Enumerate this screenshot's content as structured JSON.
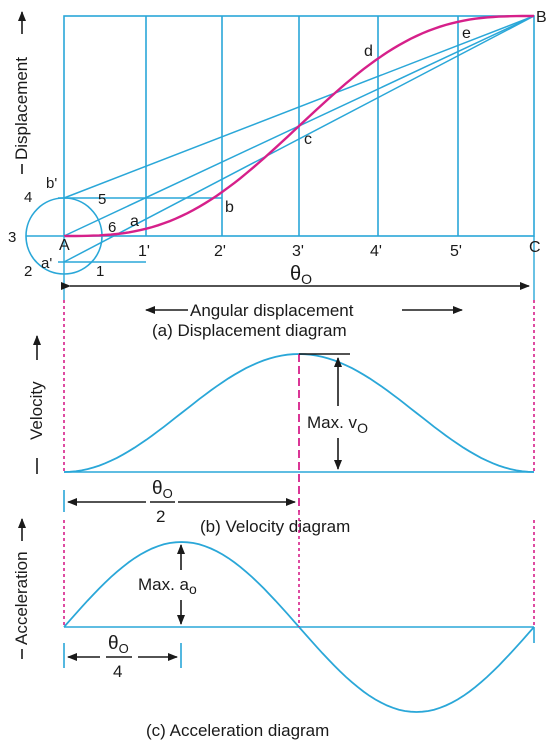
{
  "colors": {
    "construction": "#2aa7d8",
    "curve": "#d6208a",
    "dashed": "#d6208a",
    "text": "#1a1a1a",
    "arrow": "#1a1a1a"
  },
  "displacement": {
    "point_labels": {
      "A": "A",
      "B": "B",
      "C": "C",
      "a": "a",
      "b": "b",
      "c": "c",
      "d": "d",
      "e": "e",
      "a_prime": "a'",
      "b_prime": "b'"
    },
    "division_labels": [
      "1'",
      "2'",
      "3'",
      "4'",
      "5'"
    ],
    "circle_labels": [
      "1",
      "2",
      "3",
      "4",
      "5",
      "6"
    ],
    "y_axis_label": "Displacement",
    "theta_symbol": "θ",
    "theta_subscript": "O",
    "x_axis_label": "Angular displacement",
    "caption": "(a) Displacement diagram"
  },
  "velocity": {
    "y_axis_label": "Velocity",
    "max_label": "Max. v",
    "max_subscript": "O",
    "half_theta_symbol": "θ",
    "half_theta_subscript": "O",
    "half_theta_denominator": "2",
    "caption": "(b) Velocity diagram"
  },
  "acceleration": {
    "y_axis_label": "Acceleration",
    "max_label": "Max. a",
    "max_subscript": "o",
    "quarter_theta_symbol": "θ",
    "quarter_theta_subscript": "O",
    "quarter_theta_denominator": "4",
    "caption": "(c) Acceleration diagram"
  }
}
